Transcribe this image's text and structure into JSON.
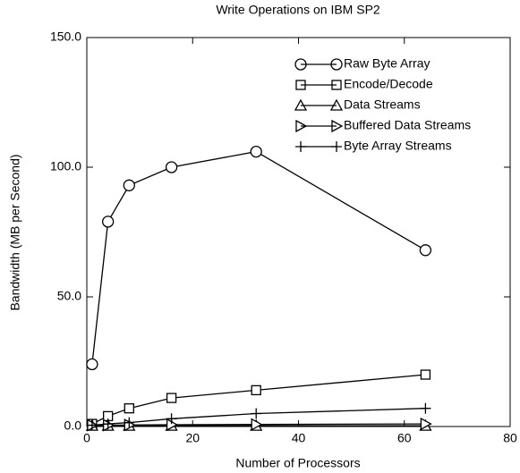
{
  "chart_data": {
    "type": "line",
    "title": "Write Operations on IBM SP2",
    "x_label": "Number of Processors",
    "y_label": "Bandwidth (MB per Second)",
    "x": [
      1,
      4,
      8,
      16,
      32,
      64
    ],
    "xlim": [
      0,
      80
    ],
    "xticks": [
      0,
      20,
      40,
      60,
      80
    ],
    "ylim": [
      0,
      150
    ],
    "yticks": [
      {
        "value": 0,
        "label": "0.0"
      },
      {
        "value": 50,
        "label": "50.0"
      },
      {
        "value": 100,
        "label": "100.0"
      },
      {
        "value": 150,
        "label": "150.0"
      }
    ],
    "legend": "upper right",
    "series": [
      {
        "name": "Raw Byte Array",
        "color": "#000000",
        "marker": "circle",
        "values": [
          24,
          79,
          93,
          100,
          106,
          68
        ]
      },
      {
        "name": "Encode/Decode",
        "color": "#000000",
        "marker": "square",
        "values": [
          1,
          4,
          7,
          11,
          14,
          20
        ]
      },
      {
        "name": "Data Streams",
        "color": "#000000",
        "marker": "triangle-up",
        "values": [
          0.3,
          0.3,
          0.3,
          0.3,
          0.3,
          0.3
        ]
      },
      {
        "name": "Buffered Data Streams",
        "color": "#000000",
        "marker": "triangle-right",
        "values": [
          0.5,
          0.5,
          0.6,
          0.7,
          0.8,
          1
        ]
      },
      {
        "name": "Byte Array Streams",
        "color": "#000000",
        "marker": "plus",
        "values": [
          0.5,
          1,
          1.5,
          3,
          5,
          7
        ]
      }
    ]
  }
}
